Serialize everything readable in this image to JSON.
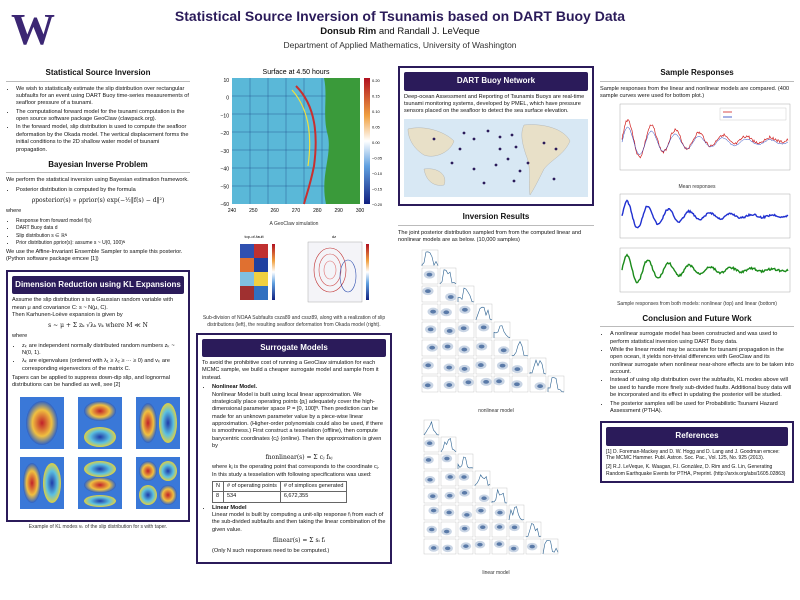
{
  "header": {
    "title": "Statistical Source Inversion of Tsunamis based on DART Buoy Data",
    "authors_main": "Donsub Rim",
    "authors_and": " and Randall J. LeVeque",
    "department": "Department of Applied Mathematics, University of Washington"
  },
  "logo": {
    "letter": "W",
    "color": "#3b2673"
  },
  "colors": {
    "primary": "#2b1b5a",
    "accent": "#3b2673"
  },
  "col1": {
    "ssi_title": "Statistical Source Inversion",
    "ssi_b1": "We wish to statistically estimate the slip distribution over rectangular subfaults for an event using DART Buoy time-series measurements of seafloor pressure of a tsunami.",
    "ssi_b2": "The computational forward model for the tsunami computation is the open source software package GeoClaw (clawpack.org).",
    "ssi_b3": "In the forward model, slip distribution is used to compute the seafloor deformation by the Okada model. The vertical displacement forms the initial conditions to the 2D shallow water model of tsunami propagation.",
    "bip_title": "Bayesian Inverse Problem",
    "bip_intro": "We perform the statistical inversion using Bayesian estimation framework.",
    "bip_b1": "Posterior distribution is computed by the formula",
    "bip_eq": "ρposterior(s) ∝ ρprior(s) exp(−½‖f(s) − d‖²)",
    "bip_where": "where",
    "bip_w1": "Response from forward model f(s)",
    "bip_w2": "DART Buoy data d",
    "bip_w3": "Slip distribution s ∈ ℝᴺ",
    "bip_w4": "Prior distribution ρprior(s): assume s ~ U(0, 100)ᴺ",
    "bip_after": "We use the Affine-Invariant Ensemble Sampler to sample this posterior. (Python software package emcee [1])",
    "kl_title": "Dimension Reduction using KL Expansions",
    "kl_p1": "Assume the slip distribution s is a Gaussian random variable with mean μ and covariance C: s ~ N(μ, C).",
    "kl_p2": "Then Karhunen-Loève expansion is given by",
    "kl_eq": "s ~ μ + Σ zₖ √λₖ vₖ   where M ≪ N",
    "kl_where": "where",
    "kl_w1": "zₖ are independent normally distributed random numbers zₖ ~ N(0, 1).",
    "kl_w2": "λₖ are eigenvalues (ordered with λ₁ ≥ λ₂ ≥ ··· ≥ 0) and vₖ are corresponding eigenvectors of the matrix C.",
    "kl_p3": "Tapers can be applied to suppress down-dip slip, and lognormal distributions can be handled as well, see [2]",
    "kl_caption": "Example of KL modes vₖ of the slip distribution for s with taper."
  },
  "col2": {
    "sim_title": "Surface at 4.50 hours",
    "sim_caption": "A GeoClaw simulation",
    "sim_xticks": [
      "240",
      "250",
      "260",
      "270",
      "280",
      "290",
      "300"
    ],
    "sim_yticks": [
      "10",
      "0",
      "−10",
      "−20",
      "−30",
      "−40",
      "−50",
      "−60"
    ],
    "sim_cbar": [
      "0.20",
      "0.15",
      "0.10",
      "0.05",
      "0.00",
      "−0.05",
      "−0.10",
      "−0.15",
      "−0.20"
    ],
    "slip_caption": "Sub-division of NOAA Subfaults csza89 and cssz89, along with a realization of slip distributions (left), the resulting seafloor deformation from Okada model (right).",
    "slip_left_title": "top-of-fault",
    "slip_right_title": "dz",
    "sm_title": "Surrogate Models",
    "sm_intro": "To avoid the prohibitive cost of running a GeoClaw simulation for each MCMC sample, we build a cheaper surrogate model and sample from it instead.",
    "sm_nl_title": "Nonlinear Model.",
    "sm_nl_p1": "Nonlinear Model is built using local linear approximation. We strategically place operating points {pⱼ} adequately cover the high-dimensional parameter space P = [0, 100]ᴺ. Then prediction can be made for an unknown parameter value by a piece-wise linear approximation. (Higher-order polynomials could also be used, if there is smoothness.) First construct a tesselation (offline), then compute barycentric coordinates {cⱼ} (online). Then the approximation is given by",
    "sm_nl_eq": "fnonlinear(s) = Σ cⱼ fₖⱼ",
    "sm_nl_p2": "where kⱼ is the operating point that corresponds to the coordinate cⱼ.",
    "sm_nl_p3": "In this study a tesselation with following specifications was used:",
    "sm_table_head": [
      "N",
      "# of operating points",
      "# of simplices generated"
    ],
    "sm_table_row": [
      "8",
      "534",
      "6,672,355"
    ],
    "sm_lin_title": "Linear Model",
    "sm_lin_p1": "Linear model is built by computing a unit-slip response fᵢ from each of the sub-divided subfaults and then taking the linear combination of the given value.",
    "sm_lin_eq": "flinear(s) = Σ sᵢ fᵢ",
    "sm_lin_p2": "(Only N such responses need to be computed.)"
  },
  "col3": {
    "dart_title": "DART Buoy Network",
    "dart_text": "Deep-ocean Assessment and Reporting of Tsunamis Buoys are real-time tsunami monitoring systems, developed by PMEL, which have pressure sensors placed on the seafloor to detect the sea surface elevation.",
    "inv_title": "Inversion Results",
    "inv_text": "The joint posterior distribution sampled from from the computed linear and nonlinear models are as below. (10,000 samples)",
    "inv_label_nl": "nonlinear model",
    "inv_label_lin": "linear model"
  },
  "col4": {
    "resp_title": "Sample Responses",
    "resp_text": "Sample responses from the linear and nonlinear models are compared. (400 sample curves were used for bottom plot.)",
    "resp_mean_label": "Mean responses",
    "resp_caption": "Sample responses from both models: nonlinear (top) and linear (bottom)",
    "conc_title": "Conclusion and Future Work",
    "conc_b1": "A nonlinear surrogate model has been constructed and was used to perform statistical inversion using DART Buoy data.",
    "conc_b2": "While the linear model may be accurate for tsunami propagation in the open ocean, it yields non-trivial differences with GeoClaw and its nonlinear surrogate when nonlinear near-shore effects are to be taken into account.",
    "conc_b3": "Instead of using slip distribution over the subfaults, KL modes above will be used to handle more finely sub-divided faults. Additional buoy data will be incorporated and its effect in updating the posterior will be studied.",
    "conc_b4": "The posterior samples will be used for Probabilistic Tsunami Hazard Assessment (PTHA).",
    "ref_title": "References",
    "ref1": "[1]  D. Foreman-Mackey and D. W. Hogg and D. Lang and J. Goodman emcee: The MCMC Hammer. Publ. Astron. Soc. Pac., Vol. 125, No. 925 (2013).",
    "ref2": "[2]  R.J. LeVeque, K. Waagan, F.I. González, D. Rim and G. Lin, Generating Random Earthquake Events for PTHA, Preprint. (http://arxiv.org/abs/1605.02863)"
  }
}
